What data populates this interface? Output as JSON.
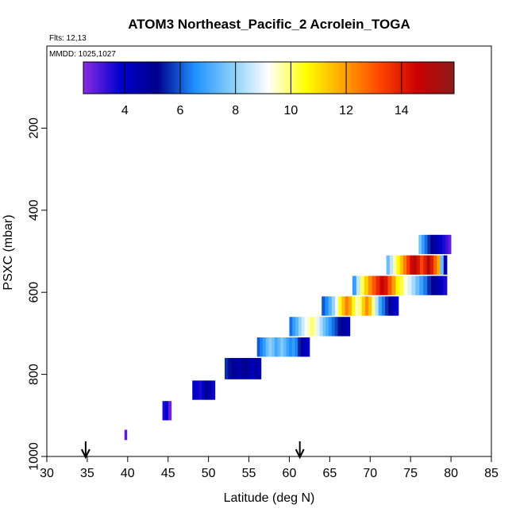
{
  "chart_data": {
    "type": "heatmap",
    "title": "ATOM3 Northeast_Pacific_2 Acrolein_TOGA",
    "flights_label": "Flts: 12,13",
    "dates_label": "MMDD: 1025,1027",
    "xlabel": "Latitude (deg N)",
    "ylabel": "PSXC (mbar)",
    "xlim": [
      30,
      85
    ],
    "ylim": [
      1000,
      0
    ],
    "x_ticks": [
      30,
      35,
      40,
      45,
      50,
      55,
      60,
      65,
      70,
      75,
      80,
      85
    ],
    "y_ticks": [
      200,
      400,
      600,
      800,
      1000
    ],
    "colorbar": {
      "range": [
        2.5,
        15.9
      ],
      "ticks": [
        4,
        6,
        8,
        10,
        12,
        14
      ],
      "colors": [
        "#8a2be2",
        "#0000cd",
        "#00008b",
        "#1e90ff",
        "#87cefa",
        "#ffffff",
        "#ffff00",
        "#ffa500",
        "#ff4500",
        "#cc0000",
        "#8b1a1a"
      ]
    },
    "arrows": [
      34.8,
      61.3
    ],
    "bands": [
      {
        "p_top": 935,
        "p_bot": 960,
        "lat_start": 39.6,
        "lat_end": 39.9,
        "values": [
          3.0
        ]
      },
      {
        "p_top": 865,
        "p_bot": 912,
        "lat_start": 44.3,
        "lat_end": 45.4,
        "values": [
          3.6,
          3.8,
          2.8
        ]
      },
      {
        "p_top": 815,
        "p_bot": 862,
        "lat_start": 48.0,
        "lat_end": 50.8,
        "values": [
          4.2,
          3.8,
          3.6,
          4.2,
          5.1,
          4.5,
          3.7
        ]
      },
      {
        "p_top": 760,
        "p_bot": 812,
        "lat_start": 52.0,
        "lat_end": 56.5,
        "values": [
          5.6,
          5.3,
          5.0,
          4.8,
          4.5,
          4.9,
          5.2,
          4.6,
          4.2,
          4.8,
          4.4
        ]
      },
      {
        "p_top": 710,
        "p_bot": 757,
        "lat_start": 56.0,
        "lat_end": 62.5,
        "values": [
          6.0,
          6.4,
          6.8,
          7.5,
          7.9,
          7.6,
          7.0,
          7.3,
          7.8,
          7.4,
          6.9,
          6.5,
          6.8,
          6.4,
          5.5,
          4.8,
          4.2,
          3.8
        ]
      },
      {
        "p_top": 660,
        "p_bot": 707,
        "lat_start": 60.0,
        "lat_end": 67.5,
        "values": [
          6.2,
          6.8,
          7.3,
          8.0,
          8.6,
          9.1,
          9.5,
          10.0,
          9.6,
          8.9,
          8.3,
          7.6,
          7.1,
          6.6,
          6.2,
          5.8,
          5.3,
          5.0,
          4.6,
          4.3
        ]
      },
      {
        "p_top": 610,
        "p_bot": 657,
        "lat_start": 64.0,
        "lat_end": 73.5,
        "values": [
          6.0,
          6.5,
          7.2,
          8.0,
          9.0,
          10.4,
          11.5,
          12.4,
          11.8,
          10.6,
          9.6,
          9.9,
          11.2,
          12.2,
          11.4,
          9.8,
          8.4,
          7.0,
          6.3,
          5.6,
          4.9,
          4.3,
          3.8
        ]
      },
      {
        "p_top": 560,
        "p_bot": 607,
        "lat_start": 67.8,
        "lat_end": 79.5,
        "values": [
          6.8,
          8.5,
          10.0,
          11.2,
          12.2,
          13.0,
          13.8,
          14.6,
          14.2,
          13.0,
          12.0,
          10.6,
          10.2,
          9.4,
          8.8,
          8.2,
          7.5,
          6.9,
          6.3,
          5.6,
          5.0,
          4.6,
          4.2,
          3.6
        ]
      },
      {
        "p_top": 510,
        "p_bot": 557,
        "lat_start": 72.0,
        "lat_end": 79.5,
        "values": [
          7.5,
          8.5,
          9.6,
          10.5,
          11.4,
          12.4,
          13.4,
          14.4,
          15.0,
          14.2,
          13.2,
          14.0,
          15.2,
          14.0,
          12.8,
          11.8,
          7.5,
          4.5
        ]
      },
      {
        "p_top": 460,
        "p_bot": 507,
        "lat_start": 76.0,
        "lat_end": 80.0,
        "values": [
          7.6,
          6.8,
          6.2,
          5.6,
          5.1,
          4.7,
          4.3,
          4.0,
          3.6,
          3.3,
          2.9
        ]
      }
    ]
  }
}
